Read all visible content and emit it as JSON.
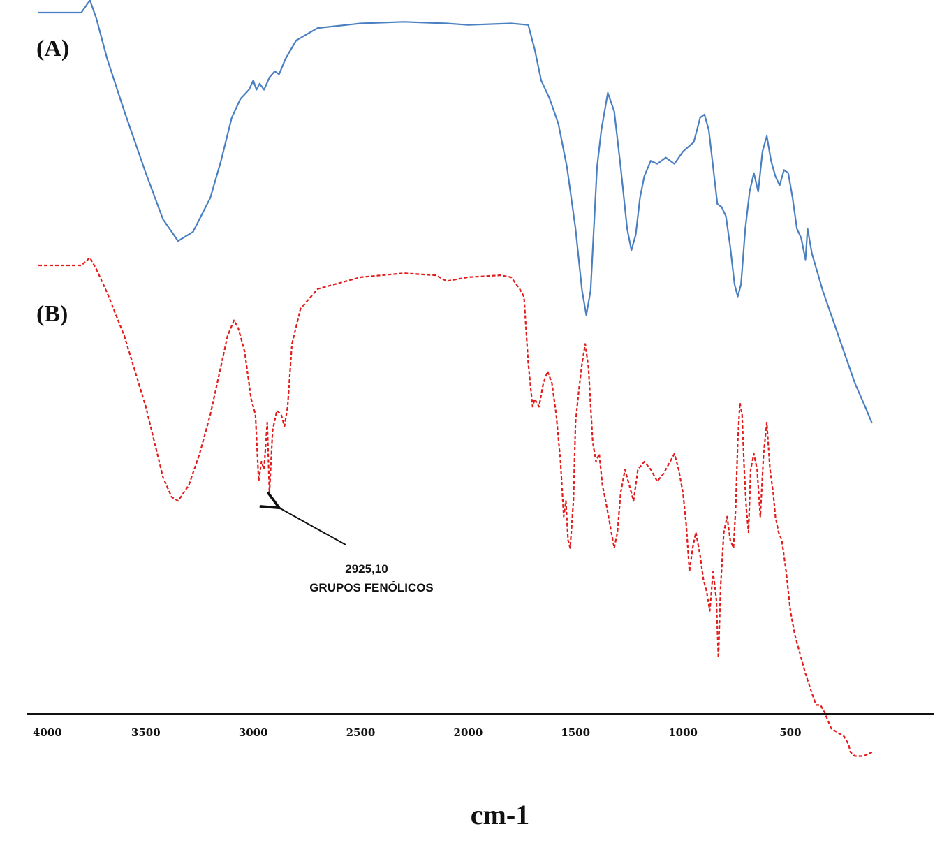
{
  "chart_data": {
    "type": "line",
    "xlabel": "cm-1",
    "ylabel": "",
    "x_reversed": true,
    "xlim": [
      4000,
      100
    ],
    "x_ticks": [
      4000,
      3500,
      3000,
      2500,
      2000,
      1500,
      1000,
      500
    ],
    "y_axis_shown": false,
    "grid": false,
    "legend": "none",
    "y_units": "relative transmittance (arbitrary, 0 = bottom of panel, 100 = top)",
    "series": [
      {
        "name": "(A)",
        "color": "#4a7fc1",
        "line_style": "solid",
        "points": [
          [
            4000,
            100
          ],
          [
            3800,
            100
          ],
          [
            3760,
            104
          ],
          [
            3730,
            98
          ],
          [
            3680,
            85
          ],
          [
            3600,
            68
          ],
          [
            3500,
            48
          ],
          [
            3420,
            33
          ],
          [
            3350,
            26
          ],
          [
            3280,
            29
          ],
          [
            3200,
            40
          ],
          [
            3150,
            52
          ],
          [
            3100,
            66
          ],
          [
            3060,
            72
          ],
          [
            3020,
            75
          ],
          [
            3000,
            78
          ],
          [
            2985,
            75
          ],
          [
            2970,
            77
          ],
          [
            2950,
            75
          ],
          [
            2925,
            79
          ],
          [
            2900,
            81
          ],
          [
            2880,
            80
          ],
          [
            2850,
            85
          ],
          [
            2800,
            91
          ],
          [
            2700,
            95
          ],
          [
            2500,
            96.5
          ],
          [
            2300,
            97
          ],
          [
            2100,
            96.5
          ],
          [
            2000,
            96
          ],
          [
            1800,
            96.5
          ],
          [
            1720,
            96
          ],
          [
            1690,
            88
          ],
          [
            1660,
            78
          ],
          [
            1620,
            72
          ],
          [
            1580,
            64
          ],
          [
            1540,
            50
          ],
          [
            1500,
            30
          ],
          [
            1470,
            10
          ],
          [
            1450,
            2
          ],
          [
            1430,
            10
          ],
          [
            1400,
            50
          ],
          [
            1380,
            62
          ],
          [
            1350,
            74
          ],
          [
            1320,
            68
          ],
          [
            1290,
            50
          ],
          [
            1260,
            30
          ],
          [
            1240,
            23
          ],
          [
            1220,
            28
          ],
          [
            1200,
            40
          ],
          [
            1180,
            47
          ],
          [
            1150,
            52
          ],
          [
            1120,
            51
          ],
          [
            1080,
            53
          ],
          [
            1040,
            51
          ],
          [
            1000,
            55
          ],
          [
            950,
            58
          ],
          [
            920,
            66
          ],
          [
            900,
            67
          ],
          [
            880,
            62
          ],
          [
            860,
            50
          ],
          [
            840,
            38
          ],
          [
            820,
            37
          ],
          [
            800,
            34
          ],
          [
            780,
            24
          ],
          [
            760,
            12
          ],
          [
            745,
            8
          ],
          [
            730,
            12
          ],
          [
            710,
            30
          ],
          [
            690,
            42
          ],
          [
            670,
            48
          ],
          [
            650,
            42
          ],
          [
            630,
            55
          ],
          [
            610,
            60
          ],
          [
            590,
            52
          ],
          [
            570,
            47
          ],
          [
            550,
            44
          ],
          [
            530,
            49
          ],
          [
            510,
            48
          ],
          [
            490,
            40
          ],
          [
            470,
            30
          ],
          [
            450,
            27
          ],
          [
            430,
            20
          ],
          [
            420,
            30
          ],
          [
            400,
            22
          ],
          [
            350,
            10
          ],
          [
            300,
            0
          ],
          [
            250,
            -10
          ],
          [
            200,
            -20
          ],
          [
            150,
            -28
          ],
          [
            120,
            -33
          ]
        ]
      },
      {
        "name": "(B)",
        "color": "#e21b1b",
        "line_style": "dashed",
        "points": [
          [
            4000,
            100
          ],
          [
            3800,
            100
          ],
          [
            3760,
            102
          ],
          [
            3730,
            99
          ],
          [
            3680,
            93
          ],
          [
            3600,
            82
          ],
          [
            3500,
            64
          ],
          [
            3420,
            46
          ],
          [
            3380,
            41
          ],
          [
            3350,
            40
          ],
          [
            3300,
            44
          ],
          [
            3250,
            52
          ],
          [
            3200,
            62
          ],
          [
            3160,
            72
          ],
          [
            3120,
            82
          ],
          [
            3090,
            86
          ],
          [
            3070,
            84
          ],
          [
            3040,
            78
          ],
          [
            3010,
            66
          ],
          [
            2990,
            62
          ],
          [
            2975,
            45
          ],
          [
            2962,
            50
          ],
          [
            2950,
            48
          ],
          [
            2935,
            60
          ],
          [
            2925,
            42
          ],
          [
            2910,
            58
          ],
          [
            2890,
            63
          ],
          [
            2870,
            62
          ],
          [
            2855,
            59
          ],
          [
            2840,
            64
          ],
          [
            2820,
            80
          ],
          [
            2780,
            89
          ],
          [
            2700,
            94
          ],
          [
            2500,
            97
          ],
          [
            2300,
            98
          ],
          [
            2150,
            97.5
          ],
          [
            2100,
            96
          ],
          [
            2000,
            97
          ],
          [
            1850,
            97.5
          ],
          [
            1800,
            97
          ],
          [
            1760,
            94
          ],
          [
            1740,
            92
          ],
          [
            1720,
            75
          ],
          [
            1700,
            64
          ],
          [
            1690,
            66
          ],
          [
            1670,
            64
          ],
          [
            1650,
            70
          ],
          [
            1630,
            73
          ],
          [
            1610,
            70
          ],
          [
            1590,
            62
          ],
          [
            1570,
            50
          ],
          [
            1555,
            36
          ],
          [
            1545,
            40
          ],
          [
            1535,
            30
          ],
          [
            1525,
            28
          ],
          [
            1510,
            40
          ],
          [
            1500,
            60
          ],
          [
            1485,
            68
          ],
          [
            1470,
            75
          ],
          [
            1455,
            80
          ],
          [
            1440,
            74
          ],
          [
            1420,
            55
          ],
          [
            1405,
            50
          ],
          [
            1390,
            52
          ],
          [
            1375,
            44
          ],
          [
            1360,
            40
          ],
          [
            1340,
            34
          ],
          [
            1320,
            28
          ],
          [
            1305,
            32
          ],
          [
            1290,
            42
          ],
          [
            1270,
            48
          ],
          [
            1250,
            44
          ],
          [
            1230,
            40
          ],
          [
            1210,
            48
          ],
          [
            1180,
            50
          ],
          [
            1150,
            48
          ],
          [
            1120,
            45
          ],
          [
            1090,
            47
          ],
          [
            1060,
            50
          ],
          [
            1040,
            52
          ],
          [
            1020,
            48
          ],
          [
            1000,
            42
          ],
          [
            985,
            34
          ],
          [
            970,
            22
          ],
          [
            955,
            28
          ],
          [
            940,
            32
          ],
          [
            920,
            26
          ],
          [
            905,
            20
          ],
          [
            890,
            17
          ],
          [
            875,
            12
          ],
          [
            860,
            22
          ],
          [
            845,
            15
          ],
          [
            835,
            0
          ],
          [
            825,
            18
          ],
          [
            810,
            32
          ],
          [
            795,
            36
          ],
          [
            780,
            30
          ],
          [
            765,
            28
          ],
          [
            755,
            38
          ],
          [
            745,
            55
          ],
          [
            735,
            65
          ],
          [
            725,
            62
          ],
          [
            715,
            48
          ],
          [
            705,
            38
          ],
          [
            695,
            32
          ],
          [
            685,
            48
          ],
          [
            670,
            52
          ],
          [
            655,
            48
          ],
          [
            640,
            36
          ],
          [
            625,
            52
          ],
          [
            610,
            60
          ],
          [
            595,
            48
          ],
          [
            580,
            42
          ],
          [
            570,
            36
          ],
          [
            555,
            32
          ],
          [
            540,
            30
          ],
          [
            520,
            22
          ],
          [
            500,
            12
          ],
          [
            480,
            6
          ],
          [
            460,
            2
          ],
          [
            430,
            -4
          ],
          [
            400,
            -9
          ],
          [
            380,
            -12
          ],
          [
            360,
            -12
          ],
          [
            340,
            -14
          ],
          [
            310,
            -18
          ],
          [
            280,
            -19
          ],
          [
            250,
            -20
          ],
          [
            230,
            -22
          ],
          [
            220,
            -24
          ],
          [
            200,
            -25
          ],
          [
            160,
            -25
          ],
          [
            120,
            -24
          ]
        ]
      }
    ],
    "annotations": [
      {
        "series": "(B)",
        "x": 2925,
        "line1": "2925,10",
        "line2": "GRUPOS FENÓLICOS"
      }
    ]
  }
}
